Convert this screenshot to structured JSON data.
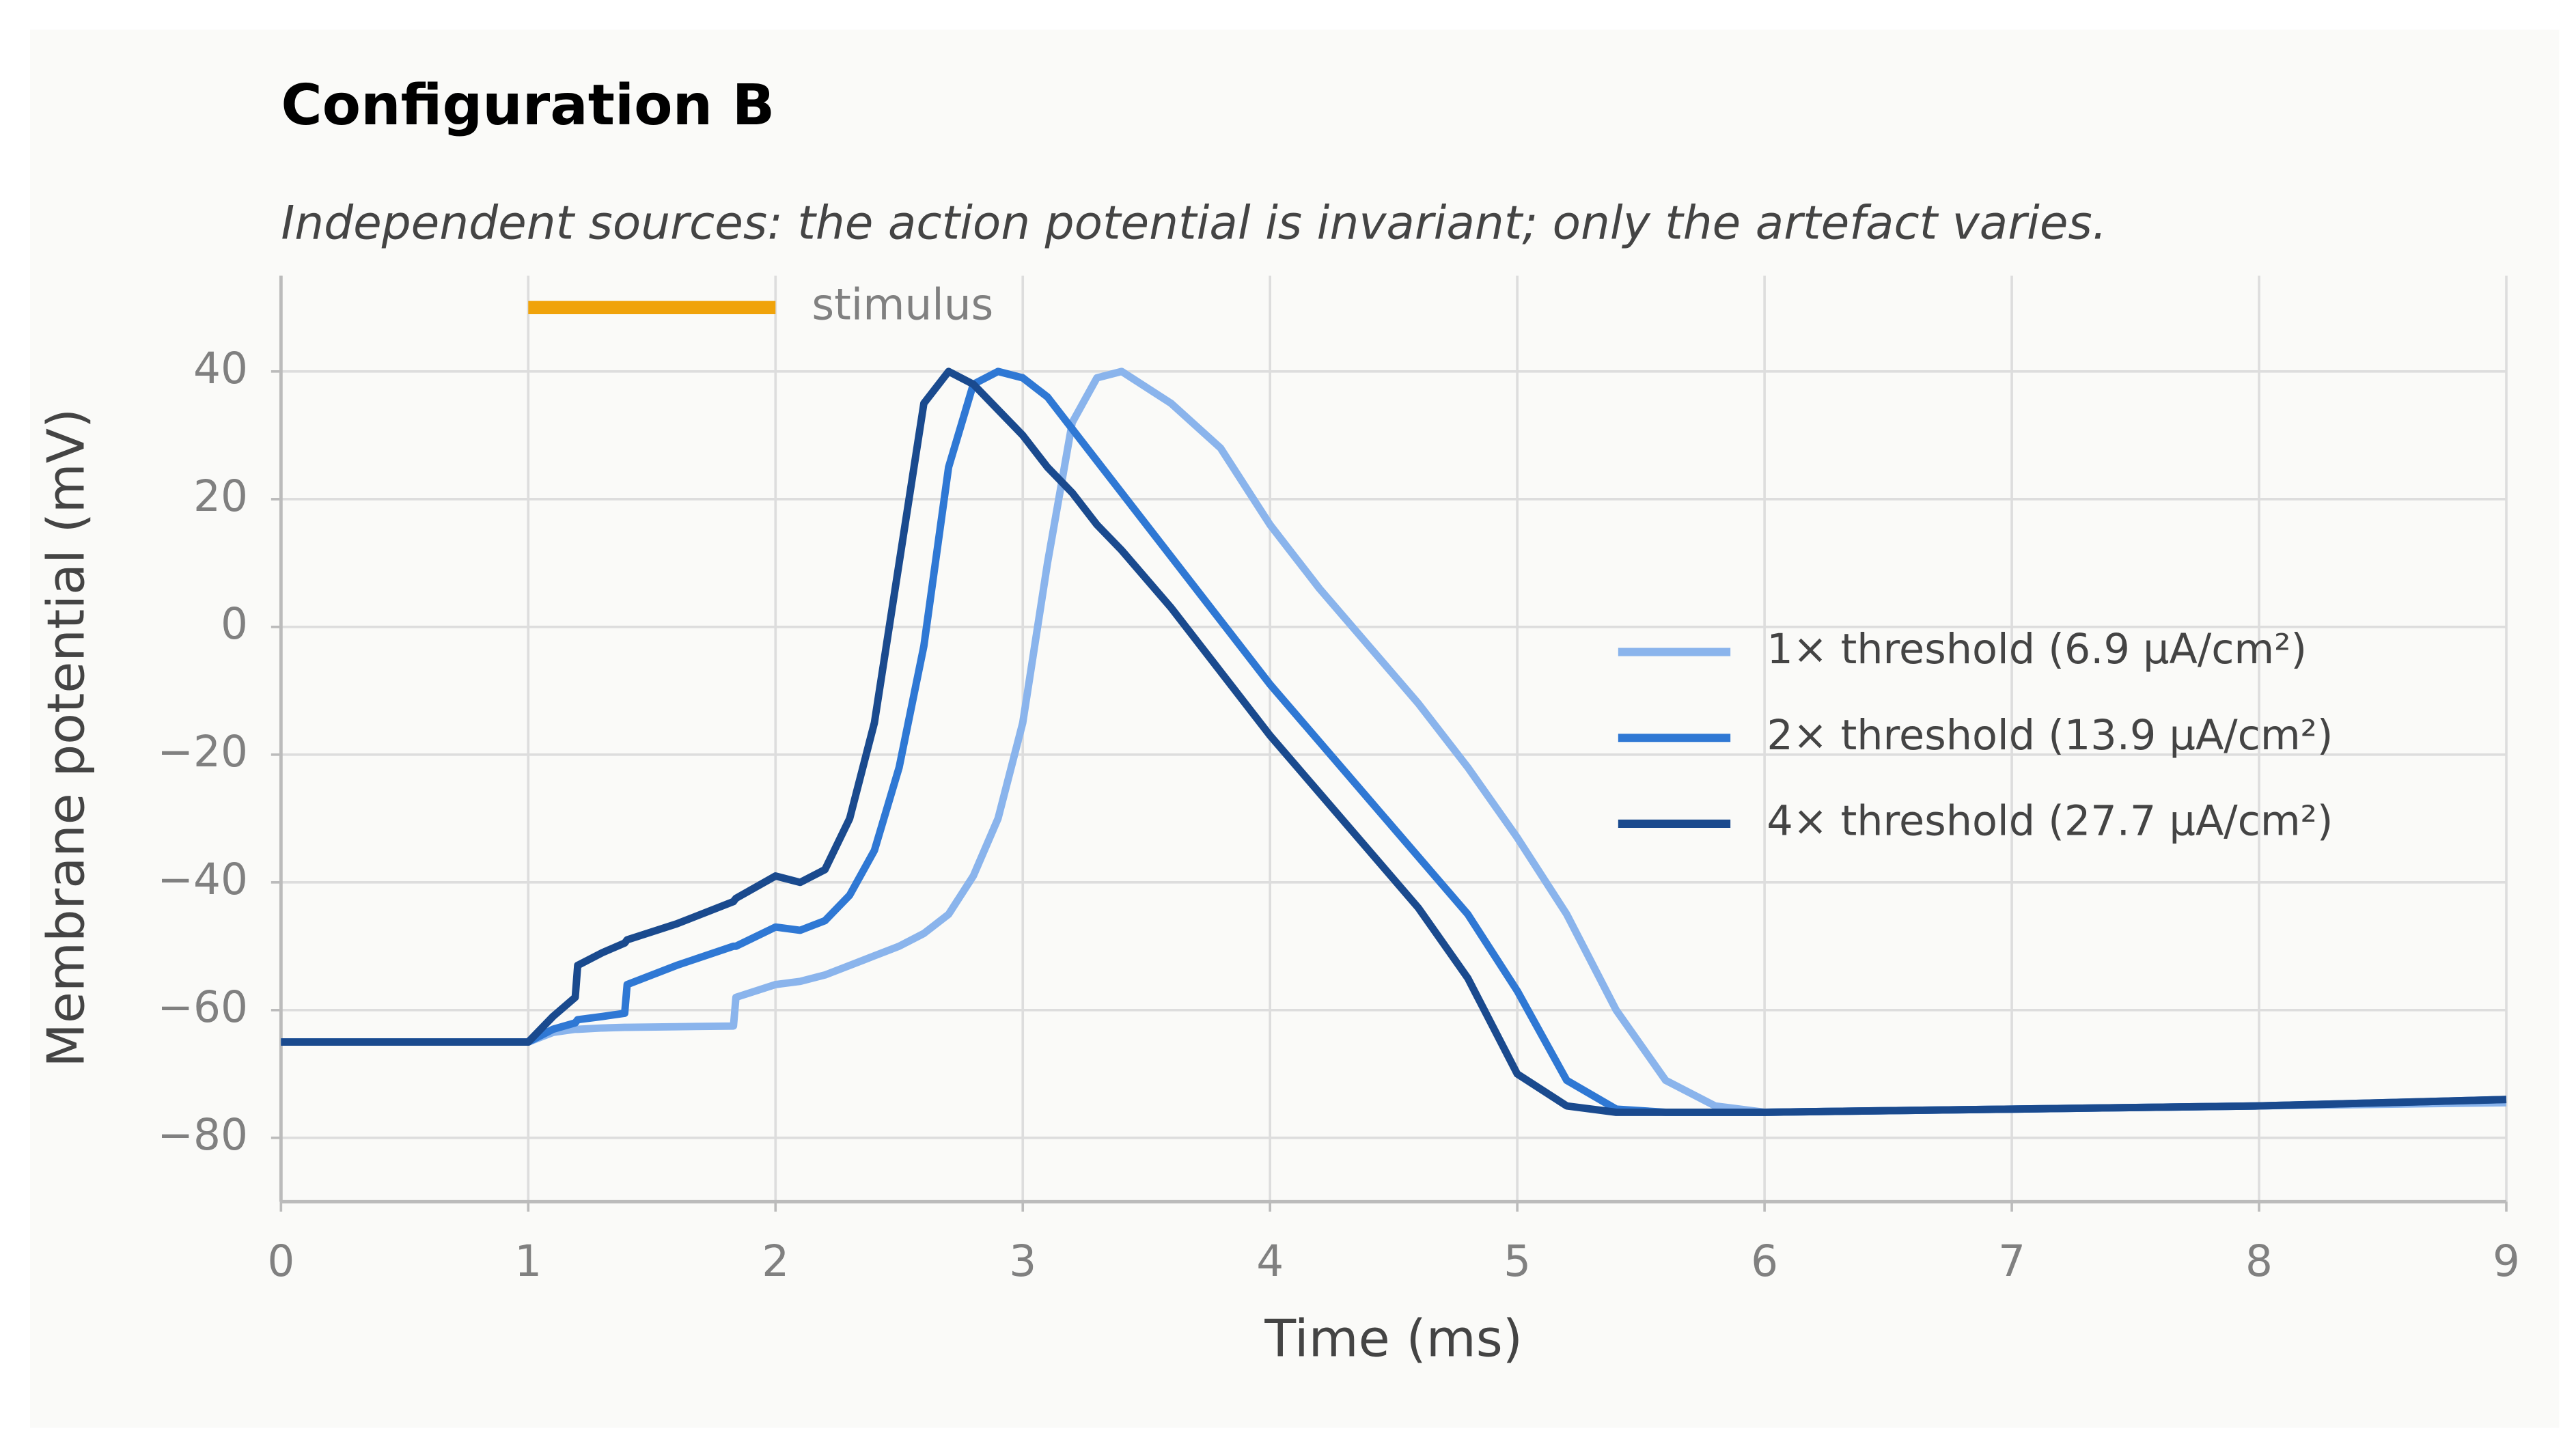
{
  "chart_data": {
    "type": "line",
    "title": "Configuration B",
    "subtitle": "Independent sources: the action potential is invariant; only the artefact varies.",
    "x_label": "Time (ms)",
    "y_label": "Membrane potential (mV)",
    "xlim": [
      0,
      9
    ],
    "ylim": [
      -90,
      55
    ],
    "xticks": [
      0,
      1,
      2,
      3,
      4,
      5,
      6,
      7,
      8,
      9
    ],
    "yticks": [
      {
        "value": -80,
        "label": "−80"
      },
      {
        "value": -60,
        "label": "−60"
      },
      {
        "value": -40,
        "label": "−40"
      },
      {
        "value": -20,
        "label": "−20"
      },
      0,
      20,
      40
    ],
    "grid": true,
    "legend": "right",
    "stimulus": {
      "label": "stimulus",
      "x": [
        1,
        2
      ],
      "y": 50,
      "color": "#f0a30a"
    },
    "x": [
      0,
      1,
      1.1,
      1.19,
      1.2,
      1.3,
      1.39,
      1.4,
      1.6,
      1.83,
      1.84,
      2,
      2.1,
      2.2,
      2.3,
      2.4,
      2.5,
      2.6,
      2.7,
      2.8,
      2.9,
      3.0,
      3.1,
      3.2,
      3.3,
      3.4,
      3.6,
      3.8,
      4,
      4.2,
      4.4,
      4.6,
      4.8,
      5,
      5.2,
      5.4,
      5.6,
      5.8,
      6,
      7,
      8,
      9
    ],
    "series": [
      {
        "name": "1× threshold (6.9 μA/cm²)",
        "color": "#8ab4ec",
        "values": [
          -65,
          -65,
          -63.5,
          -63,
          -63,
          -62.8,
          -62.7,
          -62.7,
          -62.6,
          -62.5,
          -58,
          -56,
          -55.5,
          -54.5,
          -53,
          -51.5,
          -50,
          -48,
          -45,
          -39,
          -30,
          -15,
          10,
          32,
          39,
          40,
          35,
          28,
          16,
          6,
          -3,
          -12,
          -22,
          -33,
          -45,
          -60,
          -71,
          -75,
          -76,
          -75.5,
          -75,
          -74.5
        ]
      },
      {
        "name": "2× threshold (13.9 μA/cm²)",
        "color": "#2f78d4",
        "values": [
          -65,
          -65,
          -63,
          -62,
          -61.5,
          -61,
          -60.5,
          -56,
          -53,
          -50,
          -50,
          -47,
          -47.5,
          -46,
          -42,
          -35,
          -22,
          -3,
          25,
          38,
          40,
          39,
          36,
          31,
          26,
          21,
          11,
          1,
          -9,
          -18,
          -27,
          -36,
          -45,
          -57,
          -71,
          -75.5,
          -76,
          -76,
          -76,
          -75.5,
          -75,
          -74
        ]
      },
      {
        "name": "4× threshold (27.7 μA/cm²)",
        "color": "#1a4a8e",
        "values": [
          -65,
          -65,
          -61,
          -58,
          -53,
          -51,
          -49.5,
          -49,
          -46.5,
          -43,
          -42.5,
          -39,
          -40,
          -38,
          -30,
          -15,
          10,
          35,
          40,
          38,
          34,
          30,
          25,
          21,
          16,
          12,
          3,
          -7,
          -17,
          -26,
          -35,
          -44,
          -55,
          -70,
          -75,
          -76,
          -76,
          -76,
          -76,
          -75.5,
          -75,
          -74
        ]
      }
    ]
  }
}
